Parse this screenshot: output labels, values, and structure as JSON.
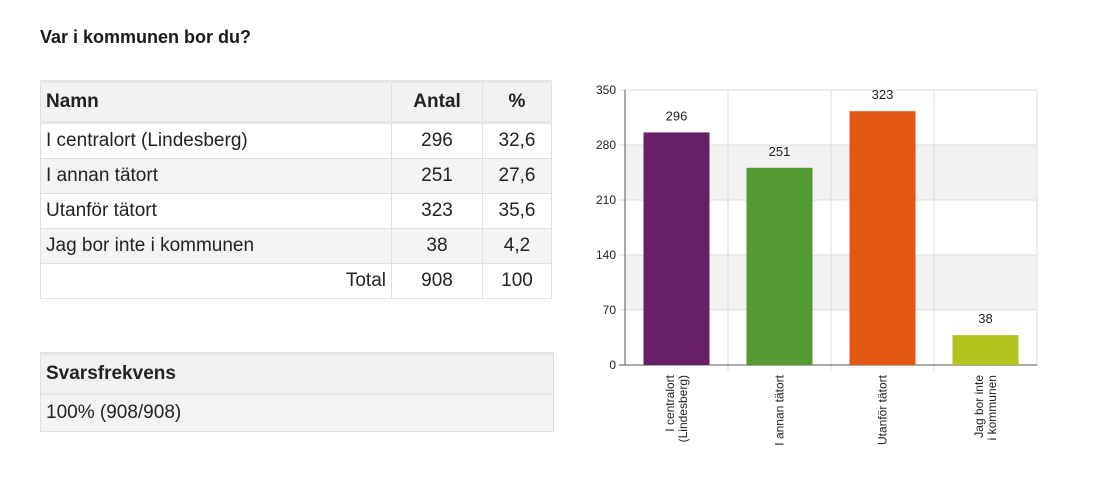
{
  "question": "Var i kommunen bor du?",
  "table": {
    "headers": [
      "Namn",
      "Antal",
      "%"
    ],
    "rows": [
      {
        "name": "I centralort (Lindesberg)",
        "count": "296",
        "percent": "32,6"
      },
      {
        "name": "I annan tätort",
        "count": "251",
        "percent": "27,6"
      },
      {
        "name": "Utanför tätort",
        "count": "323",
        "percent": "35,6"
      },
      {
        "name": "Jag bor inte i kommunen",
        "count": "38",
        "percent": "4,2"
      }
    ],
    "total": {
      "label": "Total",
      "count": "908",
      "percent": "100"
    }
  },
  "response_rate": {
    "label": "Svarsfrekvens",
    "value": "100% (908/908)"
  },
  "chart_data": {
    "type": "bar",
    "categories": [
      [
        "I centralort",
        "(Lindesberg)"
      ],
      [
        "I annan tätort"
      ],
      [
        "Utanför tätort"
      ],
      [
        "Jag bor inte",
        "i kommunen"
      ]
    ],
    "values": [
      296,
      251,
      323,
      38
    ],
    "colors": [
      "#662065",
      "#529a31",
      "#e35714",
      "#b1c31c"
    ],
    "yticks": [
      0,
      70,
      140,
      210,
      280,
      350
    ],
    "ylim": [
      0,
      350
    ],
    "grid": true,
    "legend": "none"
  }
}
